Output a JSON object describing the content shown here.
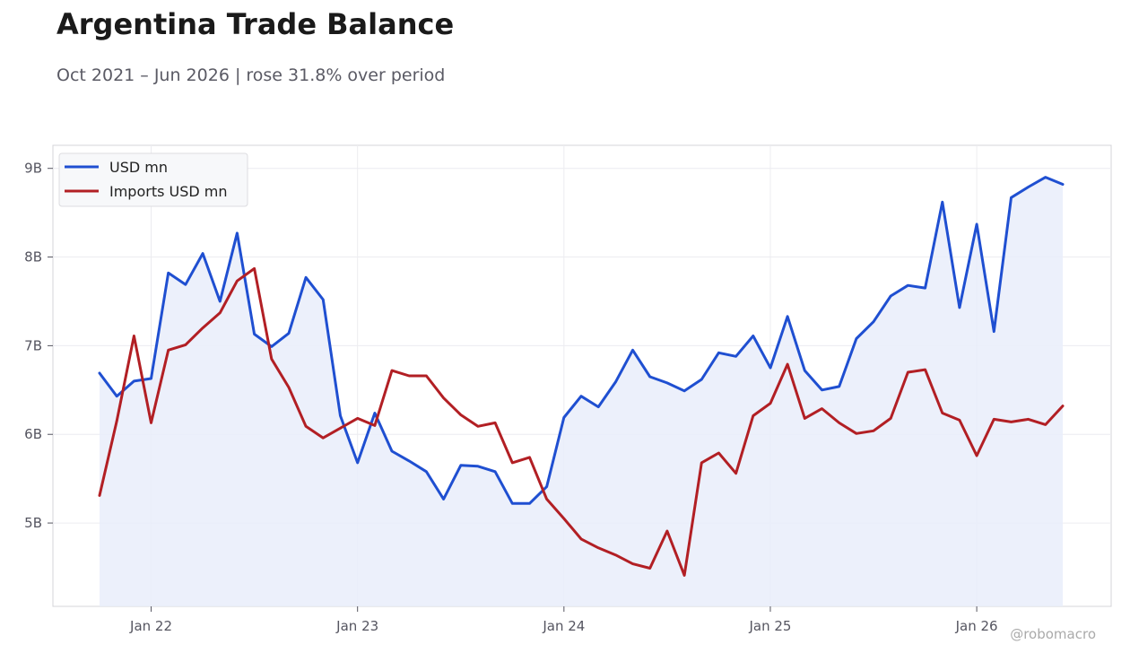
{
  "header": {
    "title": "Argentina Trade Balance",
    "subtitle": "Oct 2021 – Jun 2026 | rose 31.8% over period"
  },
  "credit": "@robomacro",
  "colors": {
    "series_1": "#1f4fd1",
    "series_2": "#b21f24",
    "fill": "#e9edfa"
  },
  "chart_data": {
    "type": "line",
    "title": "Argentina Trade Balance",
    "subtitle": "Oct 2021 – Jun 2026 | rose 31.8% over period",
    "xlabel": "",
    "ylabel": "",
    "x_start": "2021-10",
    "x_end": "2026-06",
    "x_ticks": [
      "Jan 22",
      "Jan 23",
      "Jan 24",
      "Jan 25",
      "Jan 26"
    ],
    "y_ticks": [
      "5B",
      "6B",
      "7B",
      "8B",
      "9B"
    ],
    "y_tick_values": [
      5000,
      6000,
      7000,
      8000,
      9000
    ],
    "ylim": [
      4060,
      9260
    ],
    "grid": true,
    "legend_position": "top-left",
    "series": [
      {
        "name": "USD mn",
        "fill": true,
        "values": [
          6690,
          6430,
          6600,
          6630,
          7820,
          7690,
          8040,
          7500,
          8270,
          7130,
          6990,
          7140,
          7770,
          7520,
          6210,
          5680,
          6240,
          5810,
          5700,
          5580,
          5270,
          5650,
          5640,
          5580,
          5220,
          5220,
          5410,
          6190,
          6430,
          6310,
          6590,
          6950,
          6650,
          6580,
          6490,
          6620,
          6920,
          6880,
          7110,
          6750,
          7330,
          6720,
          6500,
          6540,
          7080,
          7270,
          7560,
          7680,
          7650,
          8620,
          7430,
          8370,
          7160,
          8670,
          8790,
          8900,
          8820
        ]
      },
      {
        "name": "Imports USD mn",
        "fill": false,
        "values": [
          5310,
          6150,
          7110,
          6130,
          6950,
          7010,
          7200,
          7370,
          7730,
          7870,
          6850,
          6530,
          6090,
          5960,
          6070,
          6180,
          6100,
          6720,
          6660,
          6660,
          6410,
          6220,
          6090,
          6130,
          5680,
          5740,
          5270,
          5050,
          4820,
          4720,
          4640,
          4540,
          4490,
          4910,
          4410,
          5680,
          5790,
          5560,
          6210,
          6350,
          6790,
          6180,
          6290,
          6130,
          6010,
          6040,
          6180,
          6700,
          6730,
          6240,
          6160,
          5760,
          6170,
          6140,
          6170,
          6110,
          6320
        ]
      }
    ]
  }
}
